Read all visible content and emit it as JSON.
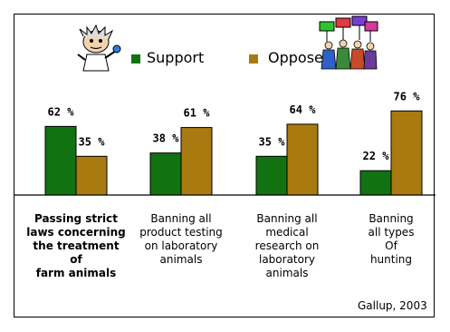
{
  "legend": {
    "support_label": "Support",
    "oppose_label": "Oppose",
    "support_color": "#127212",
    "oppose_color": "#a97a10"
  },
  "source": "Gallup, 2003",
  "clipart": {
    "left": "mad-scientist-clipart",
    "right": "protesters-with-signs-clipart"
  },
  "chart_data": {
    "type": "bar",
    "categories": [
      "Passing strict laws concerning the treatment of farm animals",
      "Banning all product testing on laboratory animals",
      "Banning all medical research on laboratory animals",
      "Banning all types Of hunting"
    ],
    "category_lines": [
      [
        "Passing strict",
        "laws concerning",
        "the treatment of",
        "farm animals"
      ],
      [
        "Banning all",
        "product testing",
        "on laboratory",
        "animals"
      ],
      [
        "Banning all",
        "medical",
        "research on",
        "laboratory",
        "animals"
      ],
      [
        "Banning",
        "all types",
        "Of",
        "hunting"
      ]
    ],
    "series": [
      {
        "name": "Support",
        "values": [
          62,
          38,
          35,
          22
        ],
        "labels": [
          "62 %",
          "38 %",
          "35 %",
          "22 %"
        ]
      },
      {
        "name": "Oppose",
        "values": [
          35,
          61,
          64,
          76
        ],
        "labels": [
          "35 %",
          "61 %",
          "64 %",
          "76 %"
        ]
      }
    ],
    "ylim": [
      0,
      100
    ],
    "grid": false,
    "legend_position": "top"
  }
}
